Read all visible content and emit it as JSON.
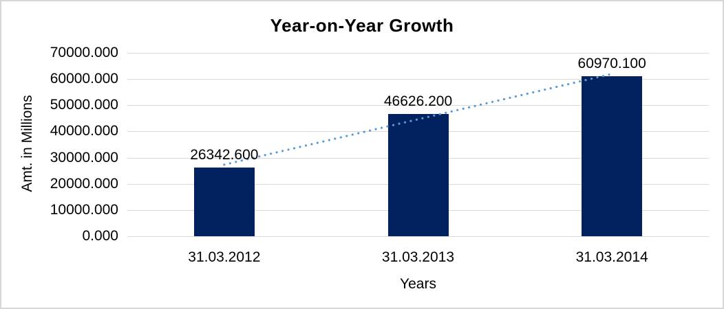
{
  "chart_data": {
    "type": "bar",
    "title": "Year-on-Year Growth",
    "xlabel": "Years",
    "ylabel": "Amt. in Millions",
    "categories": [
      "31.03.2012",
      "31.03.2013",
      "31.03.2014"
    ],
    "values": [
      26342.6,
      46626.2,
      60970.1
    ],
    "data_labels": [
      "26342.600",
      "46626.200",
      "60970.100"
    ],
    "y_ticks": [
      "70000.000",
      "60000.000",
      "50000.000",
      "40000.000",
      "30000.000",
      "20000.000",
      "10000.000",
      "0.000"
    ],
    "ylim": [
      0,
      70000
    ],
    "y_tick_step": 10000,
    "grid": true,
    "legend": "none",
    "trendline": {
      "type": "linear",
      "style": "dotted"
    },
    "colors": {
      "bar": "#02215F",
      "trendline": "#5B9BD5",
      "gridline": "#D9D9D9",
      "border": "#D7D7D7",
      "text": "#000000",
      "background": "#FFFFFF"
    }
  }
}
